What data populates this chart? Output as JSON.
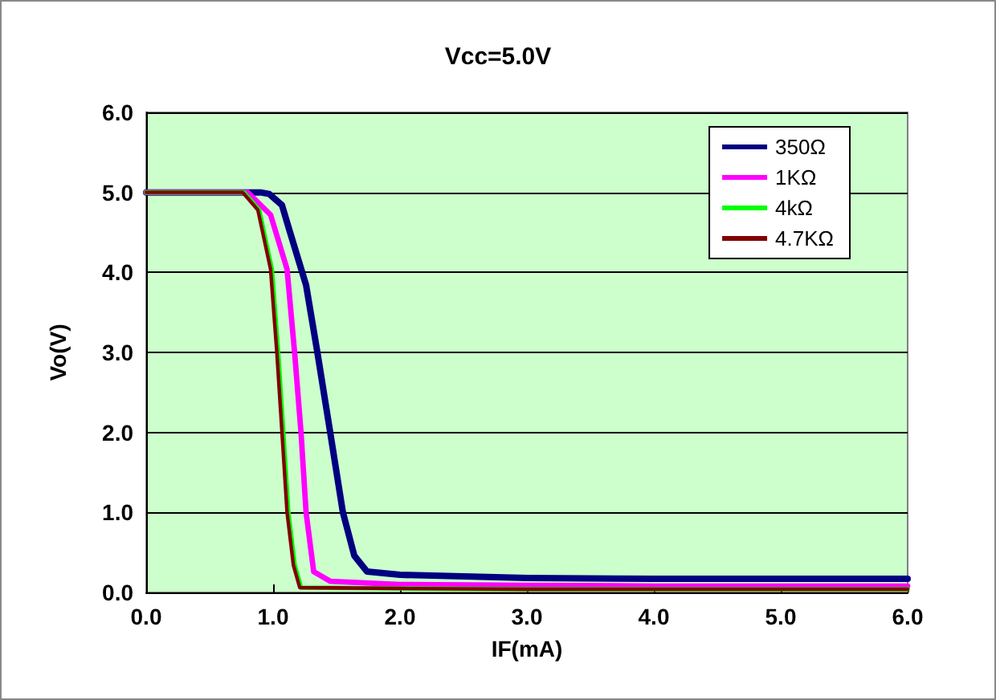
{
  "chart_data": {
    "type": "line",
    "title": "Vcc=5.0V",
    "xlabel": "IF(mA)",
    "ylabel": "Vo(V)",
    "xlim": [
      0,
      6
    ],
    "ylim": [
      0,
      6
    ],
    "xticks": [
      {
        "value": 0,
        "label": "0.0"
      },
      {
        "value": 1,
        "label": "1.0"
      },
      {
        "value": 2,
        "label": "2.0"
      },
      {
        "value": 3,
        "label": "3.0"
      },
      {
        "value": 4,
        "label": "4.0"
      },
      {
        "value": 5,
        "label": "5.0"
      },
      {
        "value": 6,
        "label": "6.0"
      }
    ],
    "yticks": [
      {
        "value": 0,
        "label": "0.0"
      },
      {
        "value": 1,
        "label": "1.0"
      },
      {
        "value": 2,
        "label": "2.0"
      },
      {
        "value": 3,
        "label": "3.0"
      },
      {
        "value": 4,
        "label": "4.0"
      },
      {
        "value": 5,
        "label": "5.0"
      },
      {
        "value": 6,
        "label": "6.0"
      }
    ],
    "grid": "y",
    "legend": "top right",
    "marker": "none",
    "line_style": "solid",
    "series": [
      {
        "name": "350Ω",
        "color": "#000080",
        "x": [
          0,
          0.9,
          0.97,
          1.07,
          1.13,
          1.26,
          1.35,
          1.45,
          1.55,
          1.64,
          1.74,
          2.0,
          3.0,
          4.0,
          5.0,
          6.0
        ],
        "values": [
          5.0,
          5.0,
          4.98,
          4.84,
          4.52,
          3.84,
          2.99,
          2.0,
          1.0,
          0.46,
          0.26,
          0.22,
          0.18,
          0.17,
          0.17,
          0.17
        ]
      },
      {
        "name": "1KΩ",
        "color": "#ff00ff",
        "x": [
          0,
          0.8,
          0.98,
          1.11,
          1.17,
          1.22,
          1.26,
          1.32,
          1.45,
          2.0,
          3.0,
          4.0,
          5.0,
          6.0
        ],
        "values": [
          5.0,
          5.0,
          4.72,
          4.04,
          2.99,
          2.0,
          1.0,
          0.26,
          0.14,
          0.1,
          0.09,
          0.08,
          0.08,
          0.08
        ]
      },
      {
        "name": "4kΩ",
        "color": "#00ff00",
        "x": [
          0,
          0.77,
          0.89,
          0.99,
          1.04,
          1.08,
          1.12,
          1.17,
          1.22,
          2.0,
          3.0,
          4.0,
          5.0,
          6.0
        ],
        "values": [
          5.0,
          5.0,
          4.78,
          4.04,
          2.99,
          2.0,
          1.0,
          0.34,
          0.06,
          0.05,
          0.04,
          0.04,
          0.04,
          0.04
        ]
      },
      {
        "name": "4.7KΩ",
        "color": "#800000",
        "x": [
          0,
          0.76,
          0.88,
          0.98,
          1.03,
          1.07,
          1.11,
          1.16,
          1.21,
          2.0,
          3.0,
          4.0,
          5.0,
          6.0
        ],
        "values": [
          5.0,
          5.0,
          4.78,
          4.04,
          2.99,
          2.0,
          1.0,
          0.34,
          0.06,
          0.05,
          0.04,
          0.04,
          0.04,
          0.04
        ]
      }
    ]
  }
}
